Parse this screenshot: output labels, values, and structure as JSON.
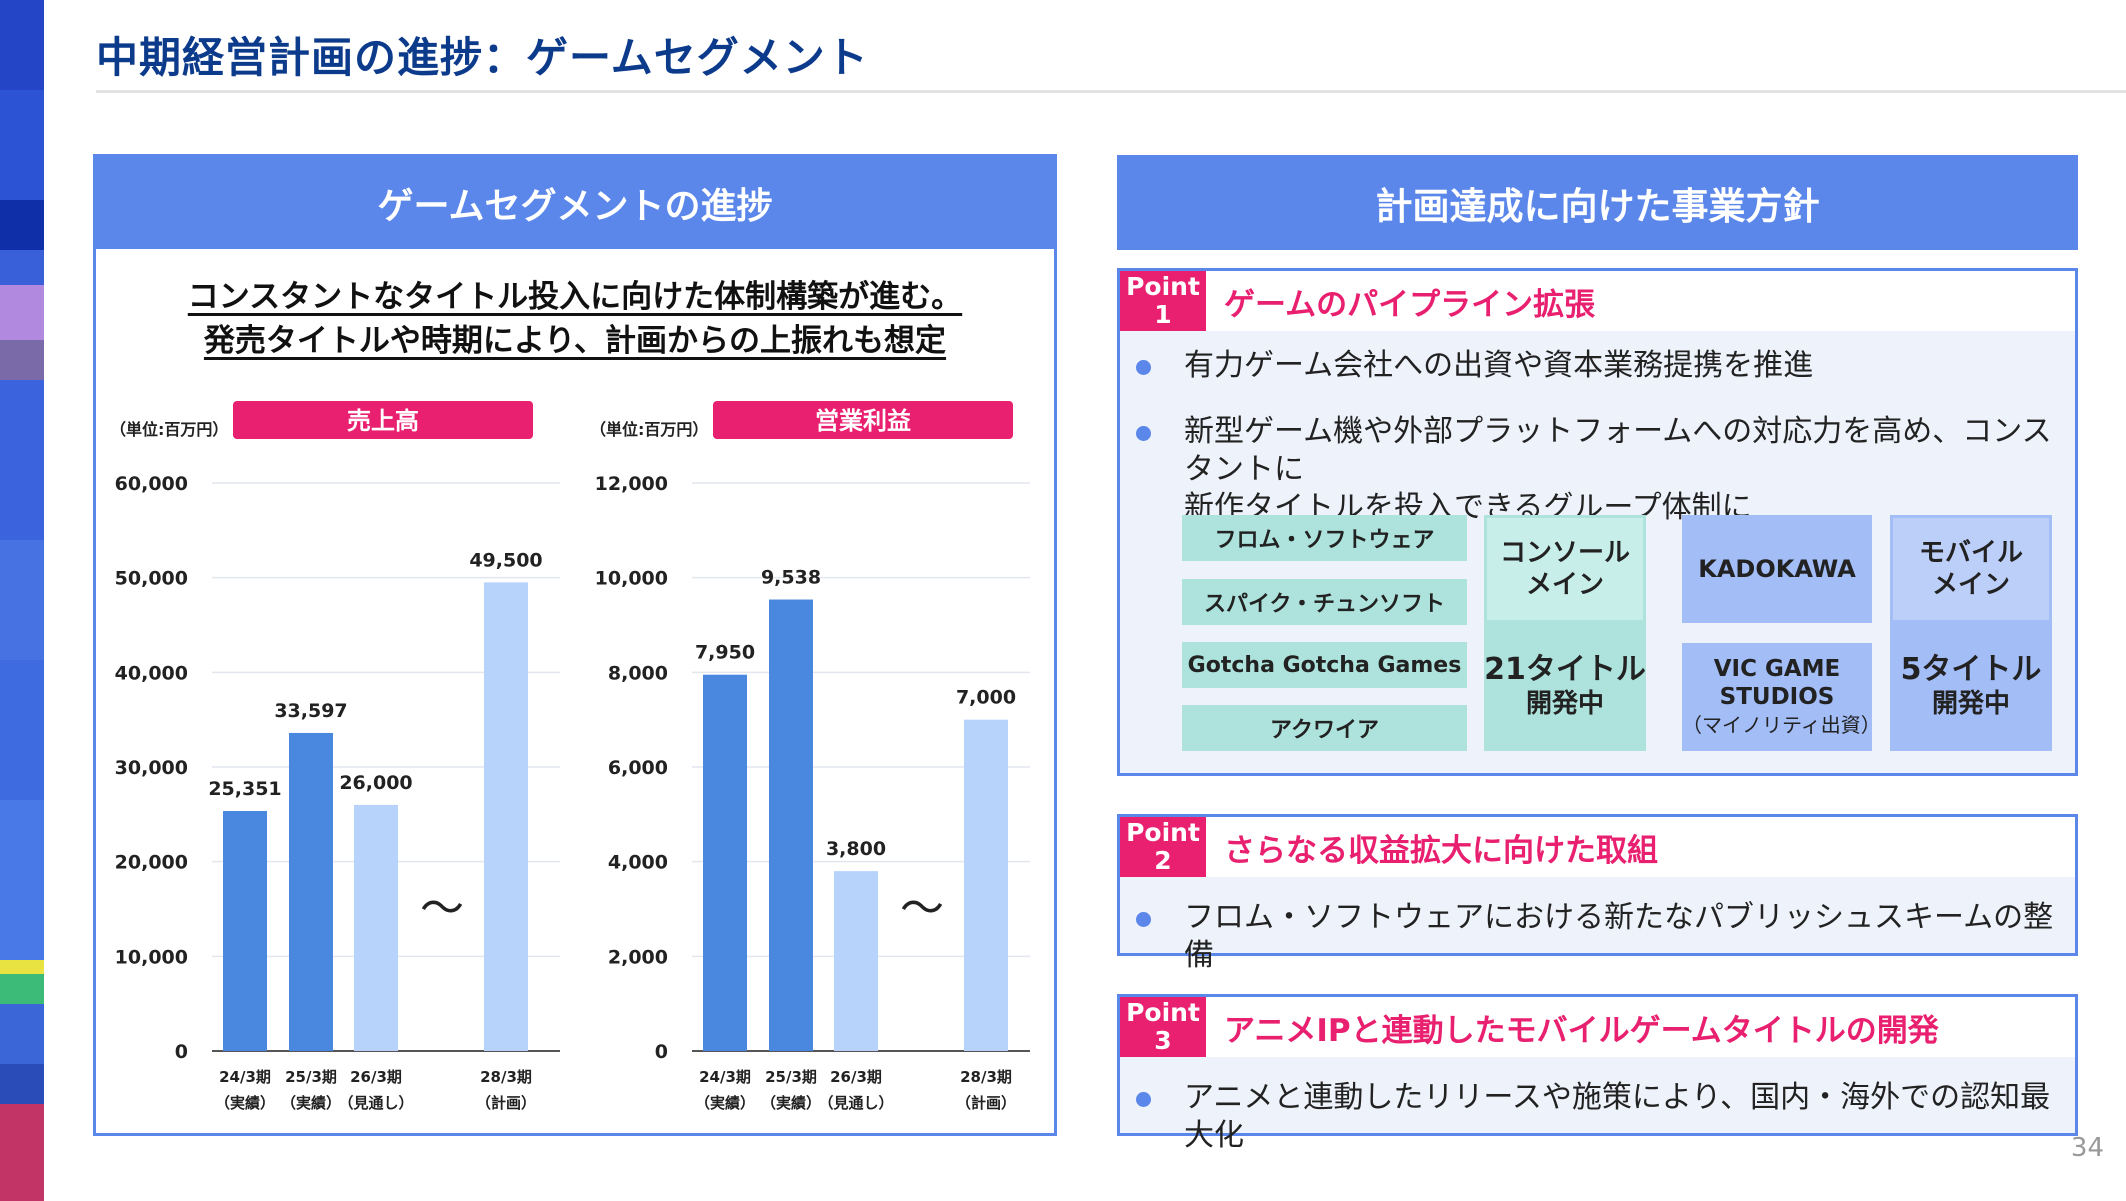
{
  "page": {
    "title": "中期経営計画の進捗：ゲームセグメント",
    "page_number": "34"
  },
  "left_panel": {
    "header": "ゲームセグメントの進捗",
    "lead_line1": "コンスタントなタイトル投入に向けた体制構築が進む。",
    "lead_line2": "発売タイトルや時期により、計画からの上振れも想定"
  },
  "chart_data": [
    {
      "type": "bar",
      "title": "売上高",
      "unit_label": "（単位:百万円）",
      "categories": [
        "24/3期\n（実績）",
        "25/3期\n（実績）",
        "26/3期\n（見通し）",
        "28/3期\n（計画）"
      ],
      "values": [
        25351,
        33597,
        26000,
        49500
      ],
      "value_labels": [
        "25,351",
        "33,597",
        "26,000",
        "49,500"
      ],
      "ylim": [
        0,
        60000
      ],
      "yticks": [
        "0",
        "10,000",
        "20,000",
        "30,000",
        "40,000",
        "50,000",
        "60,000"
      ],
      "break_symbol": "～",
      "grid": true,
      "colors": [
        "#4a88e0",
        "#4a88e0",
        "#b8d3fb",
        "#b8d3fb"
      ]
    },
    {
      "type": "bar",
      "title": "営業利益",
      "unit_label": "（単位:百万円）",
      "categories": [
        "24/3期\n（実績）",
        "25/3期\n（実績）",
        "26/3期\n（見通し）",
        "28/3期\n（計画）"
      ],
      "values": [
        7950,
        9538,
        3800,
        7000
      ],
      "value_labels": [
        "7,950",
        "9,538",
        "3,800",
        "7,000"
      ],
      "ylim": [
        0,
        12000
      ],
      "yticks": [
        "0",
        "2,000",
        "4,000",
        "6,000",
        "8,000",
        "10,000",
        "12,000"
      ],
      "break_symbol": "～",
      "grid": true,
      "colors": [
        "#4a88e0",
        "#4a88e0",
        "#b8d3fb",
        "#b8d3fb"
      ]
    }
  ],
  "right_panel": {
    "header": "計画達成に向けた事業方針",
    "points": [
      {
        "badge": "Point",
        "number": "1",
        "title": "ゲームのパイプライン拡張",
        "bullets": [
          "有力ゲーム会社への出資や資本業務提携を推進",
          "新型ゲーム機や外部プラットフォームへの対応力を高め、コンスタントに",
          "新作タイトルを投入できるグループ体制に"
        ]
      },
      {
        "badge": "Point",
        "number": "2",
        "title": "さらなる収益拡大に向けた取組",
        "bullets": [
          "フロム・ソフトウェアにおける新たなパブリッシュスキームの整備"
        ]
      },
      {
        "badge": "Point",
        "number": "3",
        "title": "アニメIPと連動したモバイルゲームタイトルの開発",
        "bullets": [
          "アニメと連動したリリースや施策により、国内・海外での認知最大化"
        ]
      }
    ],
    "org": {
      "console_studios": [
        "フロム・ソフトウェア",
        "スパイク・チュンソフト",
        "Gotcha Gotcha Games",
        "アクワイア"
      ],
      "console_label_1": "コンソール",
      "console_label_2": "メイン",
      "console_count_1": "21タイトル",
      "console_count_2": "開発中",
      "kadokawa": "KADOKAWA",
      "vic_1": "VIC GAME",
      "vic_2": "STUDIOS",
      "vic_note": "（マイノリティ出資）",
      "mobile_label_1": "モバイル",
      "mobile_label_2": "メイン",
      "mobile_count_1": "5タイトル",
      "mobile_count_2": "開発中"
    }
  },
  "colors": {
    "accent_blue": "#5b87eb",
    "title_navy": "#0d3b8c",
    "point_pink": "#e8206f",
    "teal": "#ade3dc",
    "teal_dark": "#c8eee9"
  }
}
